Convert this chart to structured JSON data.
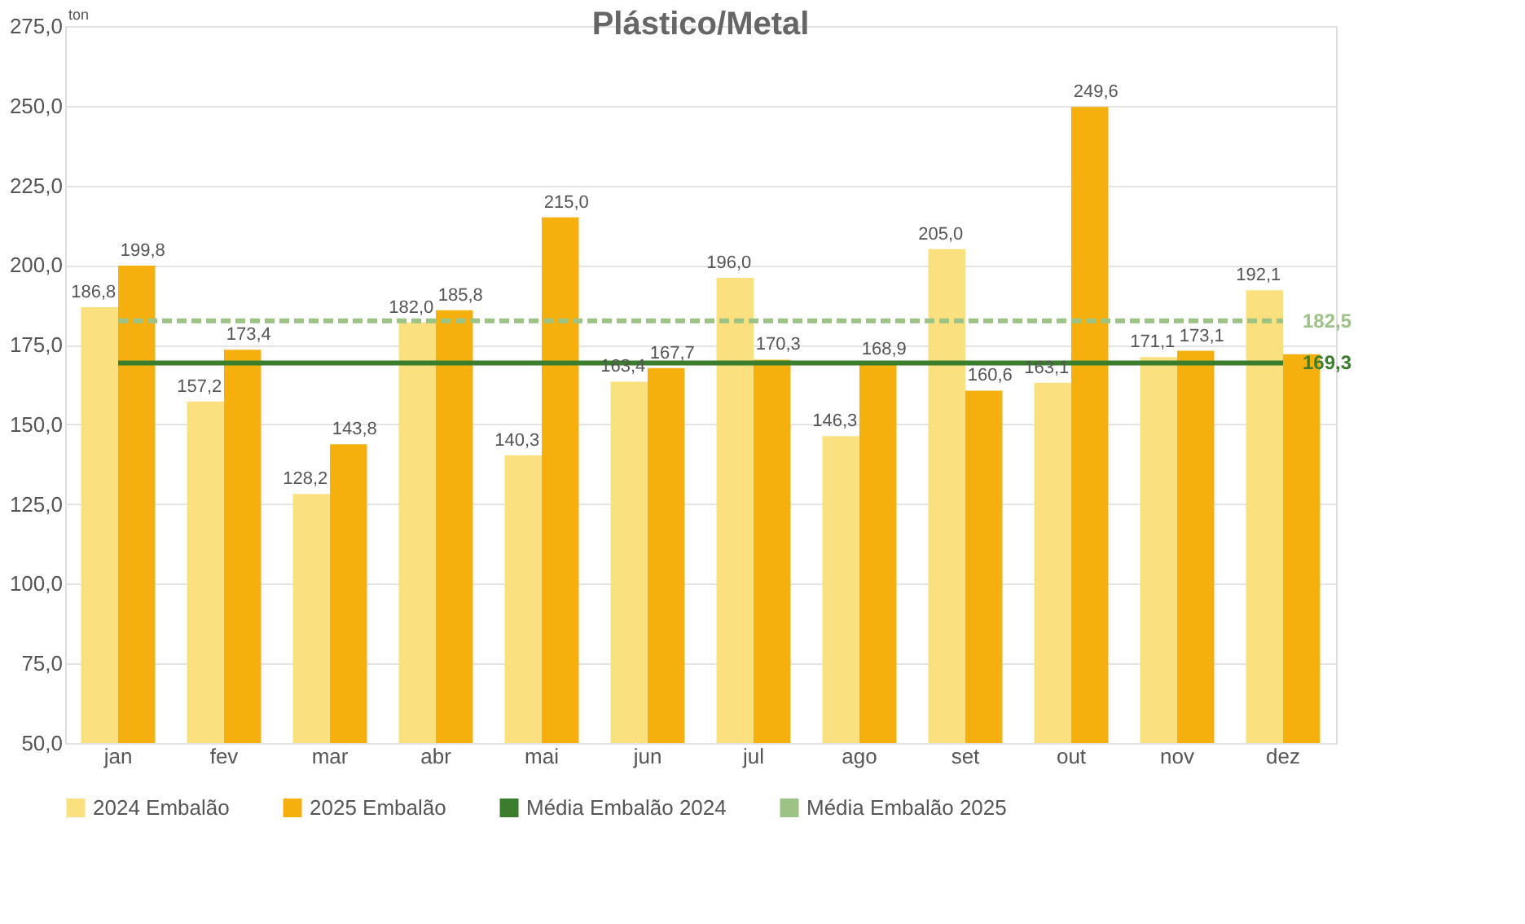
{
  "chart_data": {
    "type": "bar",
    "title": "Plástico/Metal",
    "annotations": [
      "ton"
    ],
    "categories": [
      "jan",
      "fev",
      "mar",
      "abr",
      "mai",
      "jun",
      "jul",
      "ago",
      "set",
      "out",
      "nov",
      "dez"
    ],
    "series": [
      {
        "name": "2024 Embalão",
        "color": "#fbe07f",
        "values": [
          186.8,
          157.2,
          128.2,
          182.0,
          140.3,
          163.4,
          196.0,
          146.3,
          205.0,
          163.1,
          171.1,
          192.1
        ],
        "value_labels": [
          "186,8",
          "157,2",
          "128,2",
          "182,0",
          "140,3",
          "163,4",
          "196,0",
          "146,3",
          "205,0",
          "163,1",
          "171,1",
          "192,1"
        ]
      },
      {
        "name": "2025 Embalão",
        "color": "#f5b00e",
        "values": [
          199.8,
          173.4,
          143.8,
          185.8,
          215.0,
          167.7,
          170.3,
          168.9,
          160.6,
          249.6,
          173.1,
          172.0
        ],
        "value_labels": [
          "199,8",
          "173,4",
          "143,8",
          "185,8",
          "215,0",
          "167,7",
          "170,3",
          "168,9",
          "160,6",
          "249,6",
          "173,1",
          null
        ]
      },
      {
        "name": "Média Embalão 2024",
        "type": "line",
        "color": "#3a7d2c",
        "line_style": "solid",
        "values": [
          169.3,
          169.3,
          169.3,
          169.3,
          169.3,
          169.3,
          169.3,
          169.3,
          169.3,
          169.3,
          169.3,
          169.3
        ],
        "value_labels": [
          null,
          null,
          null,
          null,
          null,
          null,
          null,
          null,
          null,
          null,
          null,
          "169,3"
        ]
      },
      {
        "name": "Média Embalão 2025",
        "type": "line",
        "color": "#9cc285",
        "line_style": "dashed",
        "values": [
          182.5,
          182.5,
          182.5,
          182.5,
          182.5,
          182.5,
          182.5,
          182.5,
          182.5,
          182.5,
          182.5,
          182.5
        ],
        "value_labels": [
          null,
          null,
          null,
          null,
          null,
          null,
          null,
          null,
          null,
          null,
          null,
          "182,5"
        ]
      }
    ],
    "ylim": [
      50,
      275
    ],
    "yticks": [
      {
        "value": 50,
        "label": "50,0"
      },
      {
        "value": 75,
        "label": "75,0"
      },
      {
        "value": 100,
        "label": "100,0"
      },
      {
        "value": 125,
        "label": "125,0"
      },
      {
        "value": 150,
        "label": "150,0"
      },
      {
        "value": 175,
        "label": "175,0"
      },
      {
        "value": 200,
        "label": "200,0"
      },
      {
        "value": 225,
        "label": "225,0"
      },
      {
        "value": 250,
        "label": "250,0"
      },
      {
        "value": 275,
        "label": "275,0"
      }
    ],
    "grid": "y",
    "legend": "bottom"
  }
}
